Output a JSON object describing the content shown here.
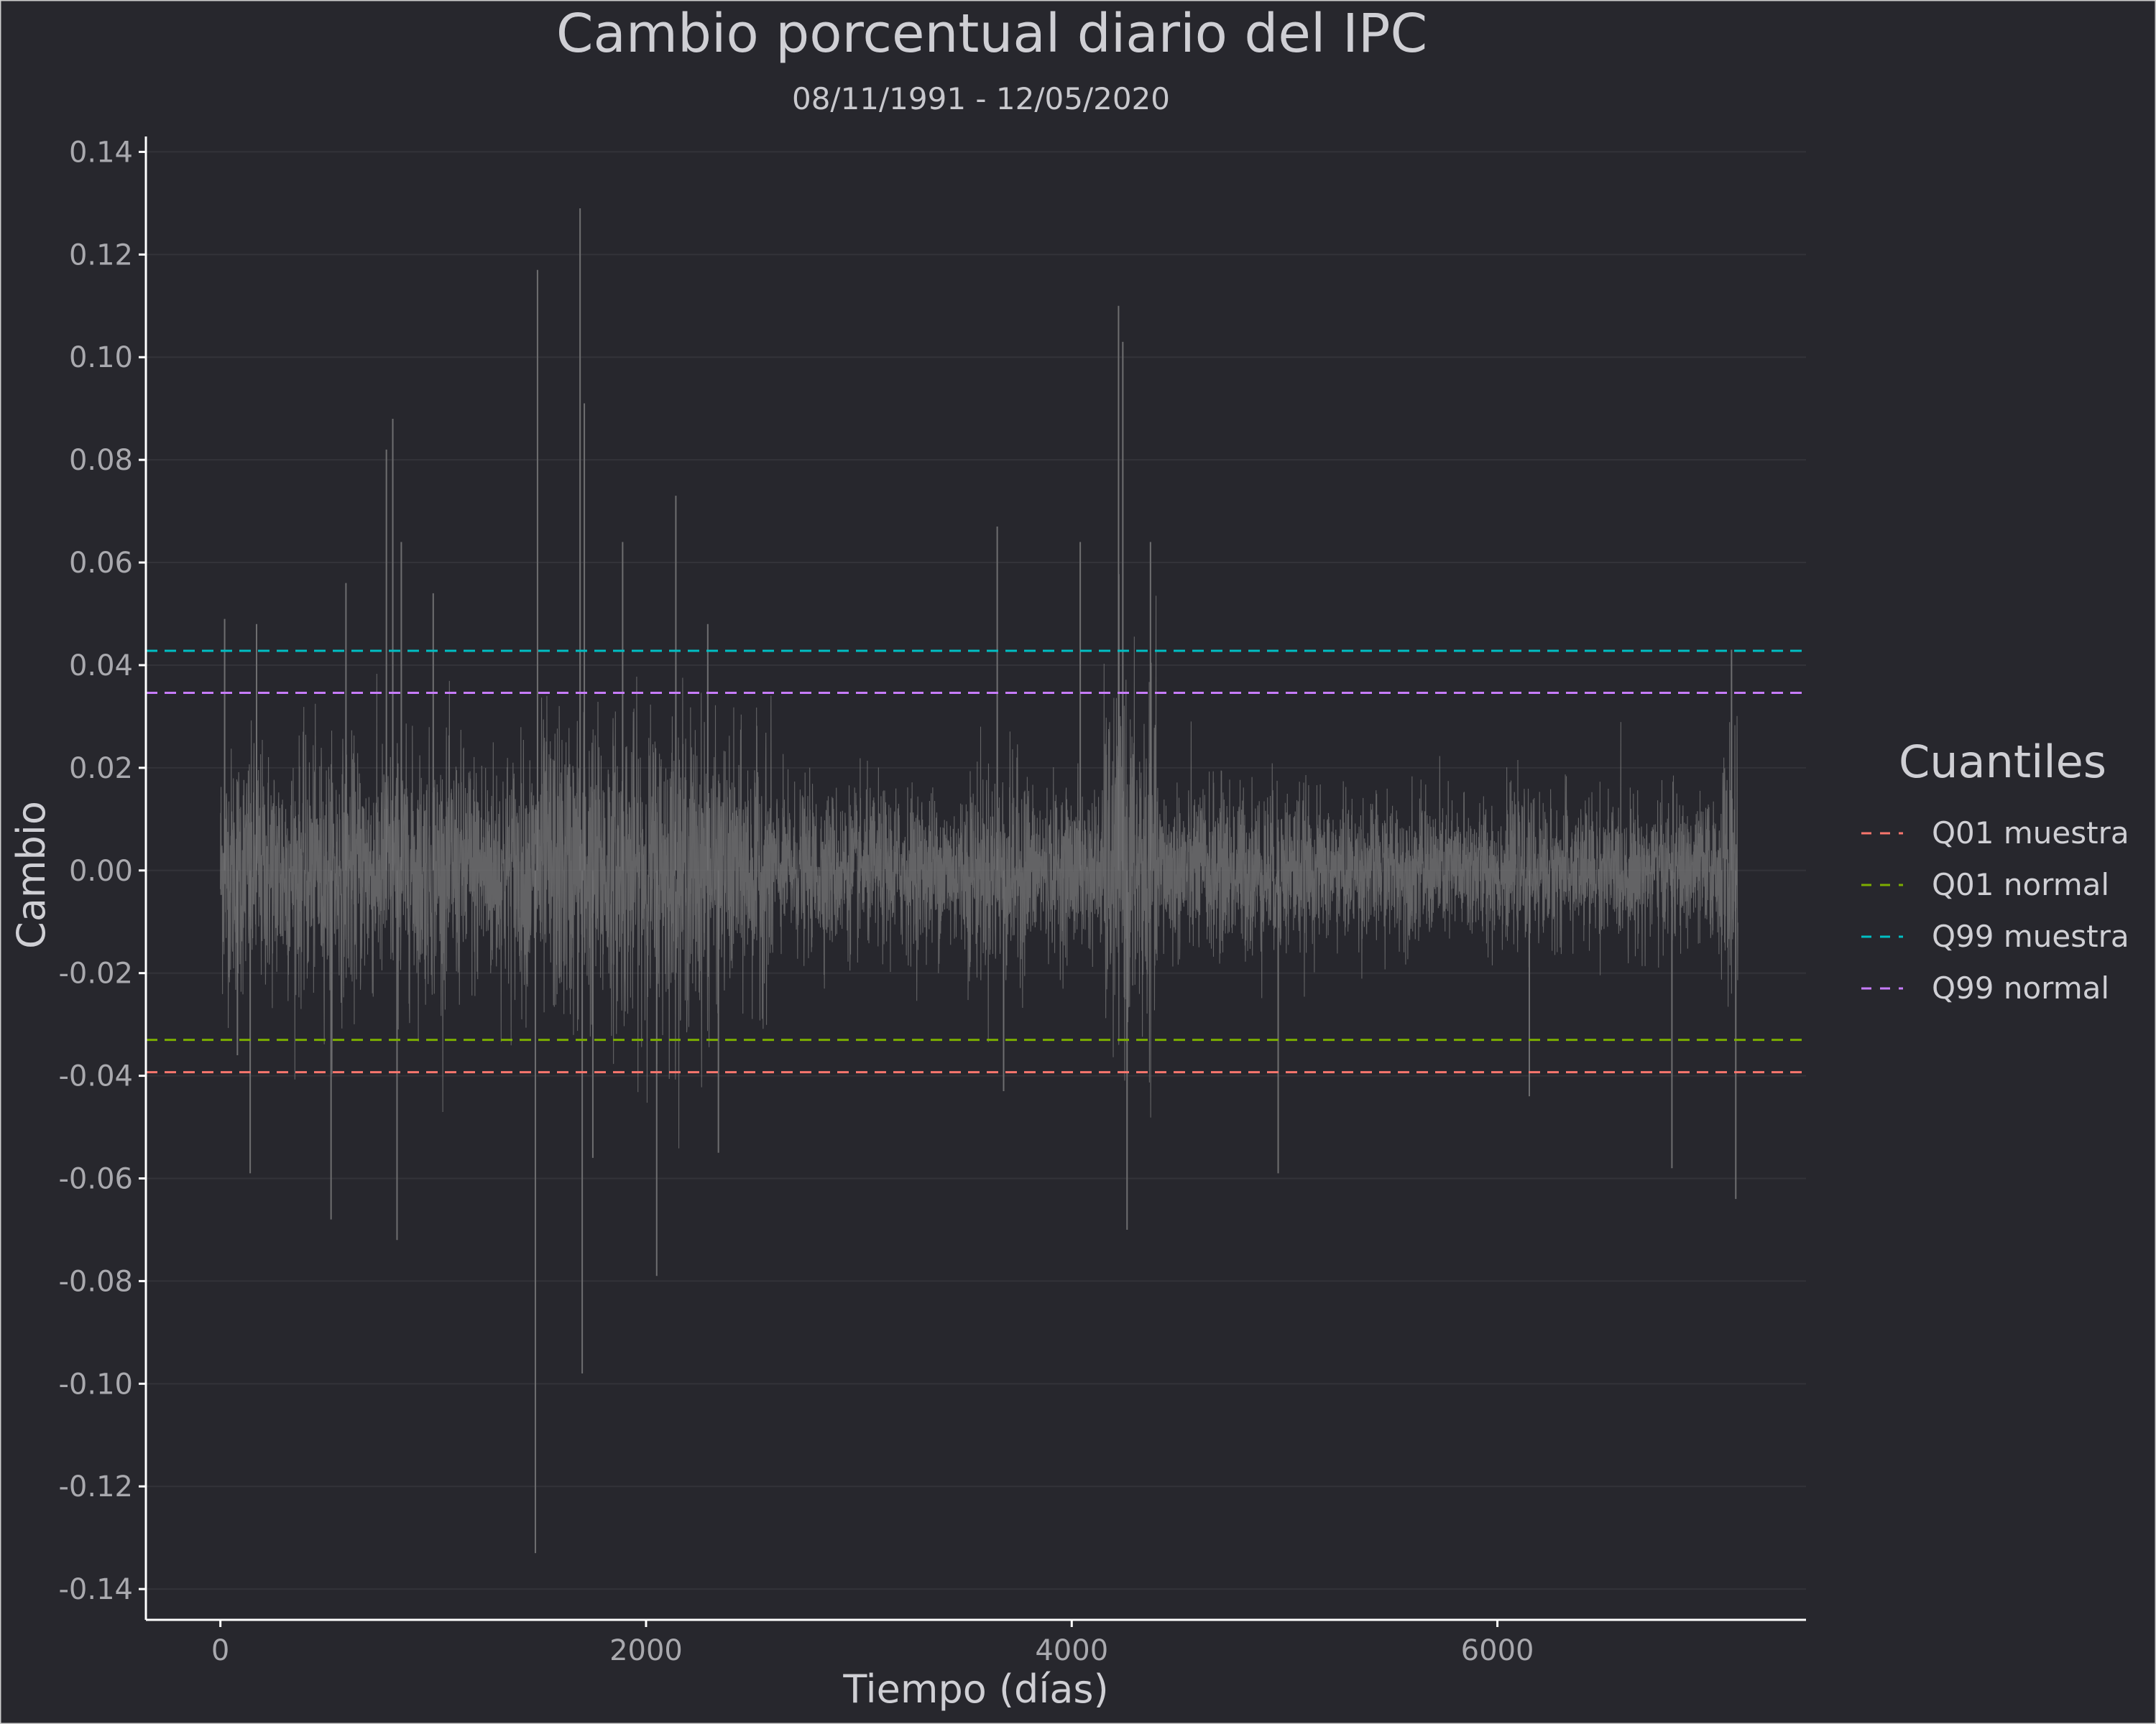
{
  "chart_data": {
    "type": "line",
    "title": "Cambio porcentual diario del IPC",
    "subtitle": "08/11/1991 - 12/05/2020",
    "xlabel": "Tiempo (días)",
    "ylabel": "Cambio",
    "xlim": [
      -350,
      7450
    ],
    "ylim": [
      -0.146,
      0.143
    ],
    "x_ticks": [
      0,
      2000,
      4000,
      6000
    ],
    "x_tick_labels": [
      "0",
      "2000",
      "4000",
      "6000"
    ],
    "y_ticks": [
      -0.14,
      -0.12,
      -0.1,
      -0.08,
      -0.06,
      -0.04,
      -0.02,
      0.0,
      0.02,
      0.04,
      0.06,
      0.08,
      0.1,
      0.12,
      0.14
    ],
    "y_tick_labels": [
      "-0.14",
      "-0.12",
      "-0.10",
      "-0.08",
      "-0.06",
      "-0.04",
      "-0.02",
      "0.00",
      "0.02",
      "0.04",
      "0.06",
      "0.08",
      "0.10",
      "0.12",
      "0.14"
    ],
    "grid": true,
    "legend": {
      "title": "Cuantiles",
      "position": "right"
    },
    "series": [
      {
        "name": "",
        "color": "#6e6e70",
        "x_range": [
          0,
          7130
        ],
        "peaks": [
          {
            "x": 20,
            "y": 0.049
          },
          {
            "x": 80,
            "y": -0.036
          },
          {
            "x": 140,
            "y": -0.059
          },
          {
            "x": 170,
            "y": 0.048
          },
          {
            "x": 520,
            "y": -0.068
          },
          {
            "x": 590,
            "y": 0.056
          },
          {
            "x": 780,
            "y": 0.082
          },
          {
            "x": 810,
            "y": 0.088
          },
          {
            "x": 830,
            "y": -0.072
          },
          {
            "x": 850,
            "y": 0.064
          },
          {
            "x": 1000,
            "y": 0.054
          },
          {
            "x": 1480,
            "y": -0.133
          },
          {
            "x": 1490,
            "y": 0.117
          },
          {
            "x": 1690,
            "y": 0.129
          },
          {
            "x": 1700,
            "y": -0.098
          },
          {
            "x": 1710,
            "y": 0.091
          },
          {
            "x": 1750,
            "y": -0.056
          },
          {
            "x": 1890,
            "y": 0.064
          },
          {
            "x": 2050,
            "y": -0.079
          },
          {
            "x": 2140,
            "y": 0.073
          },
          {
            "x": 2290,
            "y": 0.048
          },
          {
            "x": 2340,
            "y": -0.055
          },
          {
            "x": 3650,
            "y": 0.067
          },
          {
            "x": 3680,
            "y": -0.043
          },
          {
            "x": 4040,
            "y": 0.064
          },
          {
            "x": 4220,
            "y": 0.11
          },
          {
            "x": 4240,
            "y": 0.103
          },
          {
            "x": 4260,
            "y": -0.07
          },
          {
            "x": 4370,
            "y": 0.064
          },
          {
            "x": 4970,
            "y": -0.059
          },
          {
            "x": 6150,
            "y": -0.044
          },
          {
            "x": 6820,
            "y": -0.058
          },
          {
            "x": 7100,
            "y": 0.043
          },
          {
            "x": 7120,
            "y": -0.064
          }
        ]
      }
    ],
    "hlines": [
      {
        "name": "Q01 muestra",
        "y": -0.0393,
        "color": "#f8766d"
      },
      {
        "name": "Q01 normal",
        "y": -0.033,
        "color": "#7cae00"
      },
      {
        "name": "Q99 muestra",
        "y": 0.0428,
        "color": "#00bfc4"
      },
      {
        "name": "Q99 normal",
        "y": 0.0346,
        "color": "#c77cff"
      }
    ]
  },
  "colors": {
    "background": "#27272d",
    "grid": "#333339",
    "axis": "#ffffff",
    "text": "#cfcfd4",
    "tick_text": "#a9a9ae"
  }
}
